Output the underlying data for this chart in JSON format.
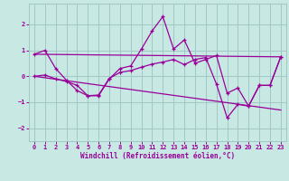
{
  "line1_x": [
    0,
    1,
    2,
    3,
    4,
    5,
    6,
    7,
    8,
    9,
    10,
    11,
    12,
    13,
    14,
    15,
    16,
    17,
    18,
    19,
    20,
    21,
    22,
    23
  ],
  "line1_y": [
    0.85,
    1.0,
    0.3,
    -0.15,
    -0.55,
    -0.75,
    -0.75,
    -0.1,
    0.3,
    0.4,
    1.05,
    1.75,
    2.3,
    1.05,
    1.4,
    0.5,
    0.65,
    0.8,
    -0.65,
    -0.45,
    -1.15,
    -0.35,
    -0.35,
    0.75
  ],
  "line2_x": [
    0,
    23
  ],
  "line2_y": [
    0.85,
    0.75
  ],
  "line3_x": [
    0,
    1,
    2,
    3,
    4,
    5,
    6,
    7,
    8,
    9,
    10,
    11,
    12,
    13,
    14,
    15,
    16,
    17,
    18,
    19,
    20,
    21,
    22,
    23
  ],
  "line3_y": [
    0.0,
    0.05,
    -0.1,
    -0.2,
    -0.35,
    -0.75,
    -0.72,
    -0.08,
    0.15,
    0.22,
    0.35,
    0.47,
    0.55,
    0.65,
    0.45,
    0.65,
    0.72,
    -0.3,
    -1.6,
    -1.08,
    -1.15,
    -0.35,
    -0.35,
    0.75
  ],
  "line4_x": [
    0,
    23
  ],
  "line4_y": [
    0.0,
    -1.3
  ],
  "color": "#990099",
  "background": "#c8e8e4",
  "grid_color": "#a0c8c4",
  "xlabel": "Windchill (Refroidissement éolien,°C)",
  "ylim": [
    -2.5,
    2.8
  ],
  "xlim": [
    -0.5,
    23.5
  ],
  "yticks": [
    -2,
    -1,
    0,
    1,
    2
  ],
  "xticks": [
    0,
    1,
    2,
    3,
    4,
    5,
    6,
    7,
    8,
    9,
    10,
    11,
    12,
    13,
    14,
    15,
    16,
    17,
    18,
    19,
    20,
    21,
    22,
    23
  ]
}
